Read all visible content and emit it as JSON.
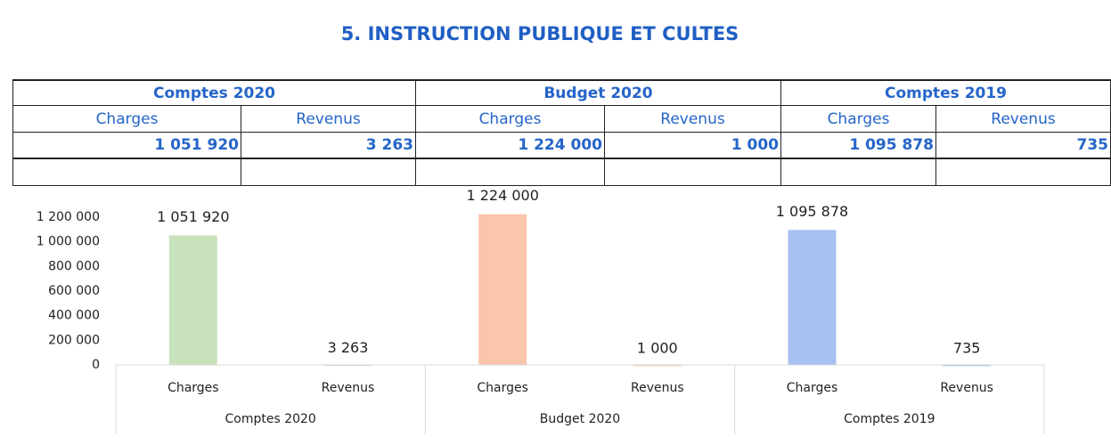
{
  "title": "5. INSTRUCTION PUBLIQUE ET CULTES",
  "table": {
    "groups": [
      "Comptes 2020",
      "Budget 2020",
      "Comptes 2019"
    ],
    "subheaders": [
      "Charges",
      "Revenus",
      "Charges",
      "Revenus",
      "Charges",
      "Revenus"
    ],
    "values": [
      "1 051 920",
      "3 263",
      "1 224 000",
      "1 000",
      "1 095 878",
      "735"
    ]
  },
  "chart_data": {
    "type": "bar",
    "categories": [
      "Charges",
      "Revenus",
      "Charges",
      "Revenus",
      "Charges",
      "Revenus"
    ],
    "groups": [
      "Comptes 2020",
      "Budget 2020",
      "Comptes 2019"
    ],
    "values": [
      1051920,
      3263,
      1224000,
      1000,
      1095878,
      735
    ],
    "value_labels": [
      "1 051 920",
      "3 263",
      "1 224 000",
      "1 000",
      "1 095 878",
      "735"
    ],
    "colors": [
      "#c8e2bc",
      "#c8e2bc",
      "#f9c5ab",
      "#f9c5ab",
      "#a8c1f1",
      "#a8c1f1"
    ],
    "ylim": [
      0,
      1200000
    ],
    "yticks": [
      0,
      {
        "value": 200000,
        "label": "200 000"
      },
      {
        "value": 400000,
        "label": "400 000"
      },
      {
        "value": 600000,
        "label": "600 000"
      },
      {
        "value": 800000,
        "label": "800 000"
      },
      {
        "value": 1000000,
        "label": "1 000 000"
      },
      {
        "value": 1200000,
        "label": "1 200 000"
      }
    ]
  }
}
